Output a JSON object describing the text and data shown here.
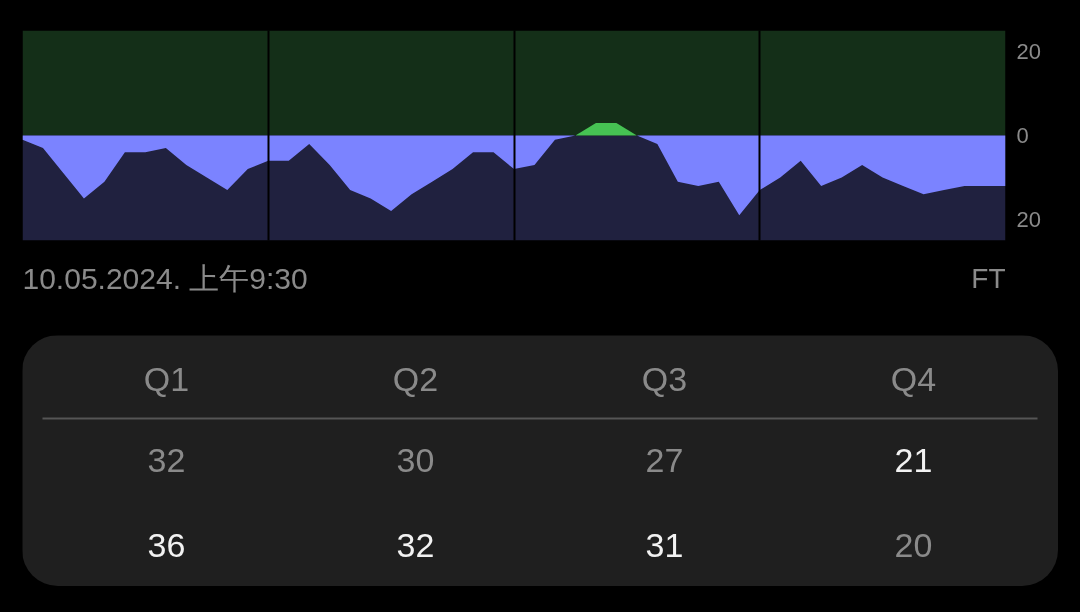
{
  "chart_data": [
    {
      "type": "area",
      "categories": [
        null,
        null,
        null,
        null,
        null,
        null,
        null,
        null,
        null,
        null,
        null,
        null,
        null,
        null,
        null,
        null,
        null,
        null,
        null,
        null,
        null,
        null,
        null,
        null,
        null,
        null,
        null,
        null,
        null,
        null,
        null,
        null,
        null,
        null,
        null,
        null,
        null,
        null,
        null,
        null,
        null,
        null,
        null,
        null,
        null,
        null,
        null,
        null,
        null
      ],
      "ylim": [
        -25,
        25
      ],
      "yticks": [
        20,
        0,
        {
          "value": -20,
          "label": "20"
        }
      ],
      "series": [
        {
          "color": "#7b83ff",
          "values": [
            -1,
            -3,
            -9,
            -15,
            -11,
            -4,
            -4,
            -3,
            -7,
            -10,
            -13,
            -8,
            -6,
            -6,
            -2,
            -7,
            -13,
            -15,
            -18,
            -14,
            -11,
            -8,
            -4,
            -4,
            -8,
            -7,
            -1,
            0,
            null,
            null,
            0,
            -2,
            -11,
            -12,
            -11,
            -19,
            -13,
            -10,
            -6,
            -12,
            -10,
            -7,
            -10,
            -12,
            -14,
            -13,
            -12,
            -12,
            -12
          ]
        },
        {
          "color": "#46c253",
          "values": [
            null,
            null,
            null,
            null,
            null,
            null,
            null,
            null,
            null,
            null,
            null,
            null,
            null,
            null,
            null,
            null,
            null,
            null,
            null,
            null,
            null,
            null,
            null,
            null,
            null,
            null,
            null,
            0,
            3,
            3,
            0,
            null,
            null,
            null,
            null,
            null,
            null,
            null,
            null,
            null,
            null,
            null,
            null,
            null,
            null,
            null,
            null,
            null,
            null
          ]
        }
      ],
      "bands": [
        {
          "axis": "y",
          "from": 0,
          "to": 25,
          "color": "#142f18"
        },
        {
          "axis": "y",
          "from": -25,
          "to": 0,
          "color": "#20213f"
        }
      ],
      "annotations": [
        "10.05.2024. 上午9:30",
        "FT"
      ],
      "grid": "x"
    },
    {
      "type": "other",
      "categories": [
        "Q1",
        "Q2",
        "Q3",
        "Q4"
      ],
      "series": [
        {
          "values": [
            32,
            30,
            27,
            21
          ]
        },
        {
          "values": [
            36,
            32,
            31,
            20
          ]
        }
      ],
      "data_labels": true
    }
  ]
}
